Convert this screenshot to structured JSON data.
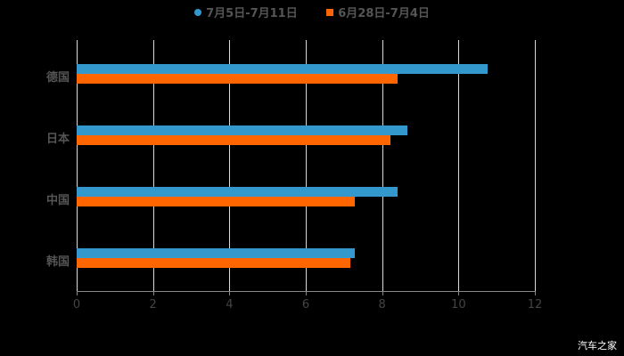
{
  "chart_data": {
    "type": "bar",
    "orientation": "horizontal",
    "title": "",
    "xlabel": "",
    "ylabel": "",
    "xlim": [
      0,
      12
    ],
    "x_ticks": [
      "0",
      "2",
      "4",
      "6",
      "8",
      "10",
      "12"
    ],
    "categories": [
      "德国",
      "日本",
      "中国",
      "韩国"
    ],
    "series": [
      {
        "name": "7月5日-7月11日",
        "color": "#3399cc",
        "marker": "circle",
        "values": [
          10.77,
          8.67,
          8.41,
          7.29
        ]
      },
      {
        "name": "6月28日-7月4日",
        "color": "#ff6600",
        "marker": "square",
        "values": [
          8.41,
          8.22,
          7.29,
          7.17
        ]
      }
    ],
    "grid": "vertical",
    "legend_position": "top"
  },
  "legend": {
    "items": [
      {
        "label": "7月5日-7月11日"
      },
      {
        "label": "6月28日-7月4日"
      }
    ]
  },
  "axis": {
    "ticks": [
      "0",
      "2",
      "4",
      "6",
      "8",
      "10",
      "12"
    ]
  },
  "categories": [
    "德国",
    "日本",
    "中国",
    "韩国"
  ],
  "watermark": "汽车之家"
}
